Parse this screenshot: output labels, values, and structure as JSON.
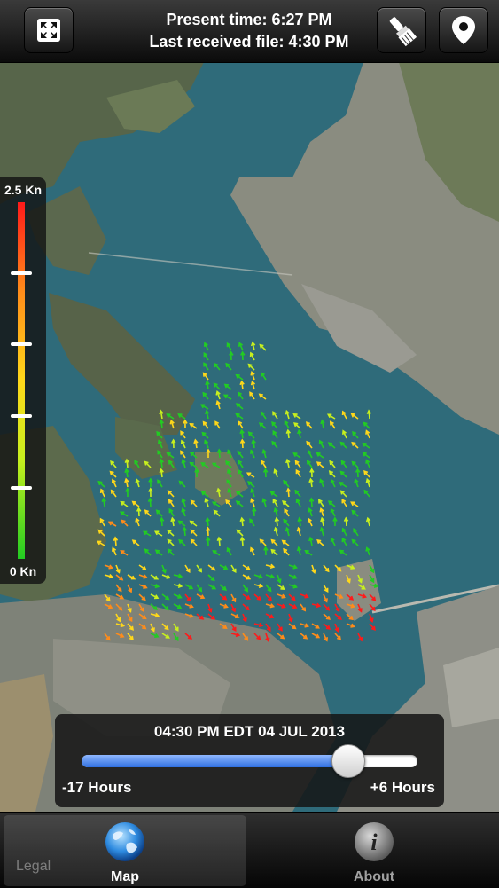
{
  "header": {
    "present_time": "Present time: 6:27 PM",
    "last_received": "Last received file: 4:30 PM",
    "left_button_icon": "fullscreen-icon",
    "paint_button_icon": "paintbrush-icon",
    "location_button_icon": "location-pin-icon"
  },
  "legend": {
    "max_label": "2.5 Kn",
    "min_label": "0 Kn",
    "colors": [
      "#ff1a1a",
      "#ff8c1a",
      "#ffd81a",
      "#c8f01e",
      "#22cc22"
    ]
  },
  "slider": {
    "date_label": "04:30 PM EDT 04 JUL 2013",
    "min_label": "-17 Hours",
    "max_label": "+6 Hours",
    "min_hours": -17,
    "max_hours": 6,
    "value_hours": 0
  },
  "tabs": [
    {
      "label": "Map",
      "icon": "globe-icon",
      "active": true
    },
    {
      "label": "About",
      "icon": "info-icon",
      "active": false
    }
  ],
  "ghost_text": "Legal",
  "colors": {
    "water": "#2f6b7a",
    "land": "#55624a",
    "slider_fill": "#2f6fe0"
  }
}
